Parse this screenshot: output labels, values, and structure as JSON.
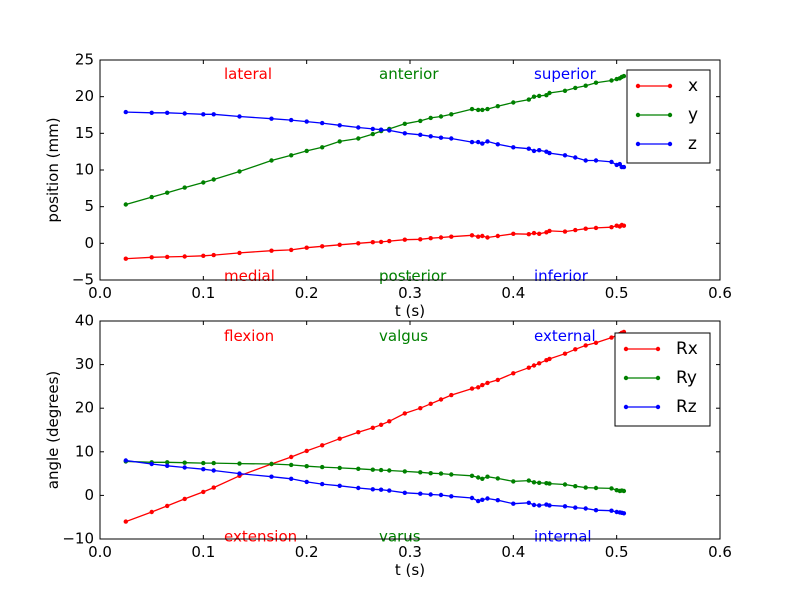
{
  "chart_data": [
    {
      "type": "line",
      "xlabel": "t (s)",
      "ylabel": "position (mm)",
      "xlim": [
        0.0,
        0.6
      ],
      "ylim": [
        -5,
        25
      ],
      "xticks": [
        "0.0",
        "0.1",
        "0.2",
        "0.3",
        "0.4",
        "0.5",
        "0.6"
      ],
      "yticks": [
        "−5",
        "0",
        "5",
        "10",
        "15",
        "20",
        "25"
      ],
      "grid": false,
      "legend_position": "top-right",
      "annotations": [
        {
          "text": "lateral",
          "color": "#ff0000",
          "x": 0.12,
          "y": 23
        },
        {
          "text": "anterior",
          "color": "#008000",
          "x": 0.27,
          "y": 23
        },
        {
          "text": "superior",
          "color": "#0000ff",
          "x": 0.42,
          "y": 23
        },
        {
          "text": "medial",
          "color": "#ff0000",
          "x": 0.12,
          "y": -4.5
        },
        {
          "text": "posterior",
          "color": "#008000",
          "x": 0.27,
          "y": -4.5
        },
        {
          "text": "inferior",
          "color": "#0000ff",
          "x": 0.42,
          "y": -4.5
        }
      ],
      "series": [
        {
          "name": "x",
          "color": "#ff0000",
          "x": [
            0.025,
            0.05,
            0.065,
            0.082,
            0.1,
            0.11,
            0.135,
            0.166,
            0.185,
            0.2,
            0.215,
            0.232,
            0.25,
            0.264,
            0.272,
            0.28,
            0.295,
            0.31,
            0.32,
            0.33,
            0.34,
            0.36,
            0.366,
            0.37,
            0.375,
            0.385,
            0.4,
            0.415,
            0.42,
            0.425,
            0.432,
            0.435,
            0.45,
            0.46,
            0.47,
            0.48,
            0.495,
            0.5,
            0.503,
            0.505,
            0.507
          ],
          "y": [
            -2.1,
            -1.9,
            -1.85,
            -1.8,
            -1.7,
            -1.6,
            -1.3,
            -1.0,
            -0.9,
            -0.6,
            -0.4,
            -0.2,
            0.0,
            0.15,
            0.2,
            0.3,
            0.5,
            0.55,
            0.7,
            0.8,
            0.9,
            1.1,
            0.9,
            1.0,
            0.8,
            1.0,
            1.3,
            1.25,
            1.4,
            1.3,
            1.5,
            1.7,
            1.6,
            1.8,
            2.0,
            2.1,
            2.2,
            2.4,
            2.3,
            2.5,
            2.4
          ]
        },
        {
          "name": "y",
          "color": "#008000",
          "x": [
            0.025,
            0.05,
            0.065,
            0.082,
            0.1,
            0.11,
            0.135,
            0.166,
            0.185,
            0.2,
            0.215,
            0.232,
            0.25,
            0.264,
            0.272,
            0.28,
            0.295,
            0.31,
            0.32,
            0.33,
            0.34,
            0.36,
            0.366,
            0.37,
            0.375,
            0.385,
            0.4,
            0.415,
            0.42,
            0.425,
            0.432,
            0.435,
            0.45,
            0.46,
            0.47,
            0.48,
            0.495,
            0.5,
            0.503,
            0.505,
            0.507
          ],
          "y": [
            5.3,
            6.3,
            6.9,
            7.6,
            8.3,
            8.7,
            9.8,
            11.3,
            12.0,
            12.6,
            13.1,
            13.9,
            14.3,
            14.9,
            15.3,
            15.6,
            16.3,
            16.7,
            17.1,
            17.3,
            17.6,
            18.3,
            18.2,
            18.2,
            18.3,
            18.7,
            19.2,
            19.6,
            20.0,
            20.1,
            20.2,
            20.5,
            20.8,
            21.2,
            21.5,
            21.9,
            22.2,
            22.4,
            22.5,
            22.7,
            22.8
          ]
        },
        {
          "name": "z",
          "color": "#0000ff",
          "x": [
            0.025,
            0.05,
            0.065,
            0.082,
            0.1,
            0.11,
            0.135,
            0.166,
            0.185,
            0.2,
            0.215,
            0.232,
            0.25,
            0.264,
            0.272,
            0.28,
            0.295,
            0.31,
            0.32,
            0.33,
            0.34,
            0.36,
            0.366,
            0.37,
            0.375,
            0.385,
            0.4,
            0.415,
            0.42,
            0.425,
            0.432,
            0.435,
            0.45,
            0.46,
            0.47,
            0.48,
            0.495,
            0.5,
            0.503,
            0.505,
            0.507
          ],
          "y": [
            17.9,
            17.8,
            17.8,
            17.7,
            17.6,
            17.6,
            17.3,
            17.0,
            16.8,
            16.6,
            16.4,
            16.1,
            15.8,
            15.6,
            15.5,
            15.4,
            15.0,
            14.8,
            14.6,
            14.4,
            14.3,
            13.8,
            13.8,
            13.6,
            13.9,
            13.5,
            13.1,
            12.9,
            12.6,
            12.7,
            12.5,
            12.3,
            12.0,
            11.7,
            11.3,
            11.3,
            11.1,
            10.7,
            10.8,
            10.4,
            10.4
          ]
        }
      ]
    },
    {
      "type": "line",
      "xlabel": "t (s)",
      "ylabel": "angle (degrees)",
      "xlim": [
        0.0,
        0.6
      ],
      "ylim": [
        -10,
        40
      ],
      "xticks": [
        "0.0",
        "0.1",
        "0.2",
        "0.3",
        "0.4",
        "0.5",
        "0.6"
      ],
      "yticks": [
        "−10",
        "0",
        "10",
        "20",
        "30",
        "40"
      ],
      "grid": false,
      "legend_position": "top-right",
      "annotations": [
        {
          "text": "flexion",
          "color": "#ff0000",
          "x": 0.12,
          "y": 36.5
        },
        {
          "text": "valgus",
          "color": "#008000",
          "x": 0.27,
          "y": 36.5
        },
        {
          "text": "external",
          "color": "#0000ff",
          "x": 0.42,
          "y": 36.5
        },
        {
          "text": "extension",
          "color": "#ff0000",
          "x": 0.12,
          "y": -9.5
        },
        {
          "text": "varus",
          "color": "#008000",
          "x": 0.27,
          "y": -9.5
        },
        {
          "text": "internal",
          "color": "#0000ff",
          "x": 0.42,
          "y": -9.5
        }
      ],
      "series": [
        {
          "name": "Rx",
          "color": "#ff0000",
          "x": [
            0.025,
            0.05,
            0.065,
            0.082,
            0.1,
            0.11,
            0.135,
            0.166,
            0.185,
            0.2,
            0.215,
            0.232,
            0.25,
            0.264,
            0.272,
            0.28,
            0.295,
            0.31,
            0.32,
            0.33,
            0.34,
            0.36,
            0.366,
            0.37,
            0.375,
            0.385,
            0.4,
            0.415,
            0.42,
            0.425,
            0.432,
            0.435,
            0.45,
            0.46,
            0.47,
            0.48,
            0.495,
            0.5,
            0.503,
            0.505,
            0.507
          ],
          "y": [
            -6.0,
            -3.8,
            -2.4,
            -0.8,
            0.8,
            1.8,
            4.5,
            7.2,
            8.8,
            10.2,
            11.5,
            13.0,
            14.5,
            15.5,
            16.2,
            17.0,
            18.8,
            20.0,
            21.0,
            22.0,
            23.0,
            24.5,
            24.8,
            25.3,
            25.8,
            26.5,
            28.0,
            29.3,
            29.8,
            30.3,
            31.0,
            31.3,
            32.5,
            33.5,
            34.4,
            35.0,
            36.2,
            36.7,
            37.0,
            37.3,
            37.5
          ]
        },
        {
          "name": "Ry",
          "color": "#008000",
          "x": [
            0.025,
            0.05,
            0.065,
            0.082,
            0.1,
            0.11,
            0.135,
            0.166,
            0.185,
            0.2,
            0.215,
            0.232,
            0.25,
            0.264,
            0.272,
            0.28,
            0.295,
            0.31,
            0.32,
            0.33,
            0.34,
            0.36,
            0.366,
            0.37,
            0.375,
            0.385,
            0.4,
            0.415,
            0.42,
            0.425,
            0.432,
            0.435,
            0.45,
            0.46,
            0.47,
            0.48,
            0.495,
            0.5,
            0.503,
            0.505,
            0.507
          ],
          "y": [
            7.8,
            7.6,
            7.6,
            7.5,
            7.4,
            7.4,
            7.3,
            7.2,
            7.0,
            6.7,
            6.5,
            6.3,
            6.1,
            5.9,
            5.8,
            5.7,
            5.5,
            5.3,
            5.1,
            5.0,
            4.8,
            4.5,
            4.1,
            3.8,
            4.3,
            3.9,
            3.2,
            3.4,
            3.0,
            2.9,
            2.8,
            2.7,
            2.5,
            2.1,
            1.8,
            1.7,
            1.6,
            1.2,
            1.0,
            1.1,
            1.0
          ]
        },
        {
          "name": "Rz",
          "color": "#0000ff",
          "x": [
            0.025,
            0.05,
            0.065,
            0.082,
            0.1,
            0.11,
            0.135,
            0.166,
            0.185,
            0.2,
            0.215,
            0.232,
            0.25,
            0.264,
            0.272,
            0.28,
            0.295,
            0.31,
            0.32,
            0.33,
            0.34,
            0.36,
            0.366,
            0.37,
            0.375,
            0.385,
            0.4,
            0.415,
            0.42,
            0.425,
            0.432,
            0.435,
            0.45,
            0.46,
            0.47,
            0.48,
            0.495,
            0.5,
            0.503,
            0.505,
            0.507
          ],
          "y": [
            8.0,
            7.2,
            6.8,
            6.4,
            6.0,
            5.7,
            5.0,
            4.3,
            3.8,
            3.1,
            2.6,
            2.2,
            1.7,
            1.4,
            1.3,
            1.1,
            0.6,
            0.4,
            0.2,
            0.1,
            -0.2,
            -0.6,
            -1.3,
            -1.0,
            -0.7,
            -1.1,
            -1.9,
            -1.7,
            -2.2,
            -2.3,
            -2.1,
            -2.3,
            -2.5,
            -2.8,
            -3.0,
            -3.4,
            -3.5,
            -3.8,
            -3.9,
            -4.0,
            -4.1
          ]
        }
      ]
    }
  ]
}
